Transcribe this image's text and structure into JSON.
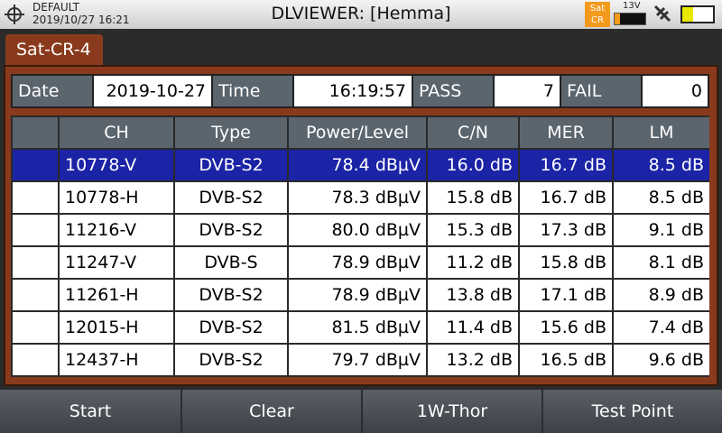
{
  "header": {
    "profile": "DEFAULT",
    "datetime": "2019/10/27 16:21",
    "title": "DLVIEWER: [Hemma]",
    "mode_lines": [
      "Sat",
      "CR"
    ],
    "voltage": "13V"
  },
  "tab": "Sat-CR-4",
  "summary": [
    [
      "Date",
      "2019-10-27"
    ],
    [
      "Time",
      "16:19:57"
    ],
    [
      "PASS",
      "7"
    ],
    [
      "FAIL",
      "0"
    ]
  ],
  "table": {
    "columns": [
      "CH",
      "Type",
      "Power/Level",
      "C/N",
      "MER",
      "LM"
    ],
    "selected_row": 0,
    "rows": [
      [
        "10778-V",
        "DVB-S2",
        "78.4 dBµV",
        "16.0 dB",
        "16.7 dB",
        "8.5 dB"
      ],
      [
        "10778-H",
        "DVB-S2",
        "78.3 dBµV",
        "15.8 dB",
        "16.7 dB",
        "8.5 dB"
      ],
      [
        "11216-V",
        "DVB-S2",
        "80.0 dBµV",
        "15.3 dB",
        "17.3 dB",
        "9.1 dB"
      ],
      [
        "11247-V",
        "DVB-S",
        "78.9 dBµV",
        "11.2 dB",
        "15.8 dB",
        "8.1 dB"
      ],
      [
        "11261-H",
        "DVB-S2",
        "78.9 dBµV",
        "13.8 dB",
        "17.1 dB",
        "8.9 dB"
      ],
      [
        "12015-H",
        "DVB-S2",
        "81.5 dBµV",
        "11.4 dB",
        "15.6 dB",
        "7.4 dB"
      ],
      [
        "12437-H",
        "DVB-S2",
        "79.7 dBµV",
        "13.2 dB",
        "16.5 dB",
        "9.6 dB"
      ]
    ]
  },
  "buttons": [
    "Start",
    "Clear",
    "1W-Thor",
    "Test Point"
  ]
}
